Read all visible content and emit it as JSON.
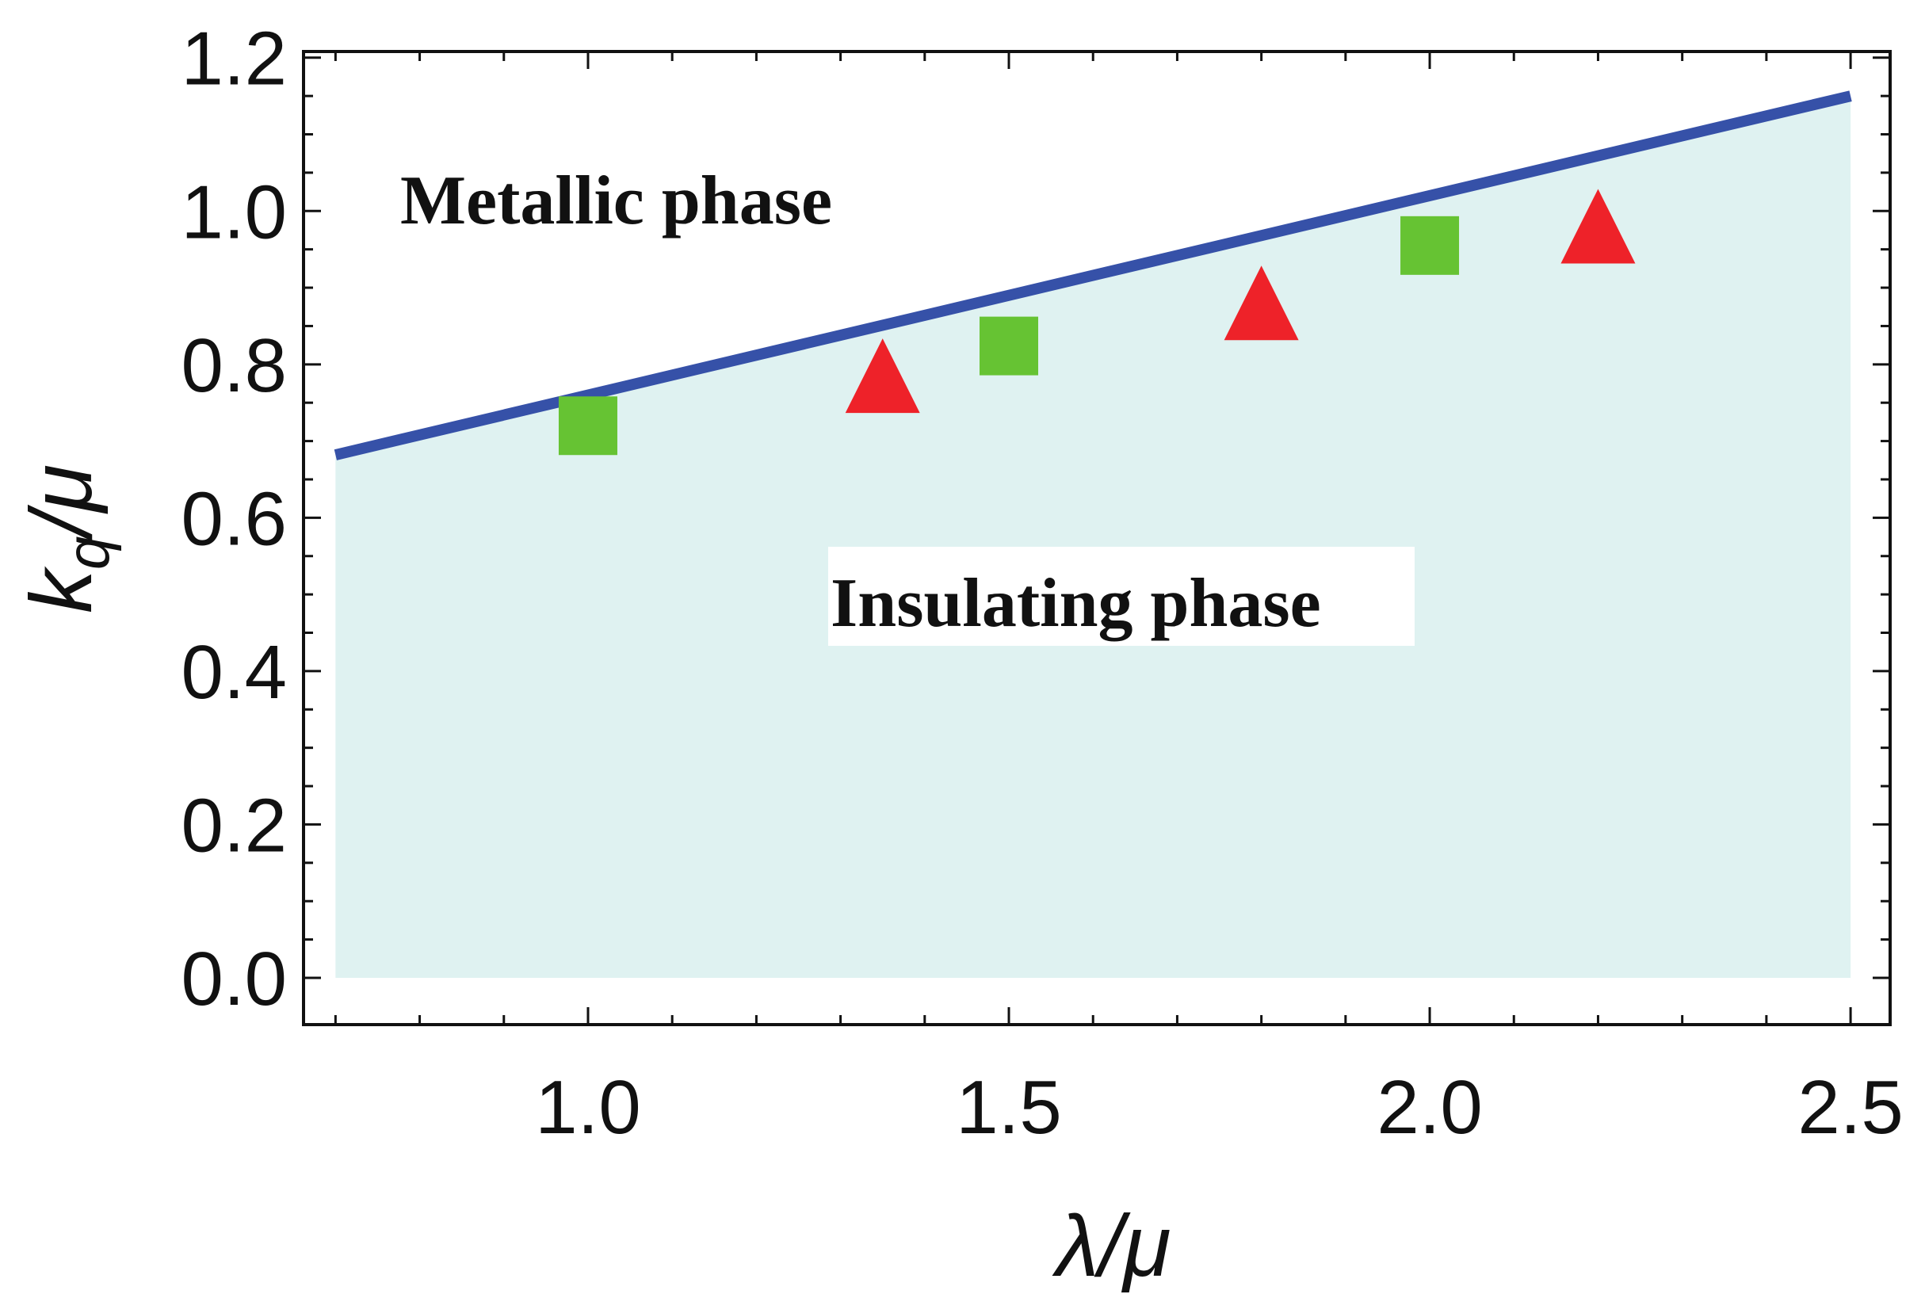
{
  "chart_data": {
    "type": "scatter",
    "title": "",
    "xlabel": "λ/μ",
    "ylabel_main": "k",
    "ylabel_sub": "q",
    "ylabel_tail": "/μ",
    "xlim": [
      0.662,
      2.547
    ],
    "ylim": [
      -0.061,
      1.208
    ],
    "xticks": [
      "1.0",
      "1.5",
      "2.0",
      "2.5"
    ],
    "xtick_values": [
      1.0,
      1.5,
      2.0,
      2.5
    ],
    "yticks": [
      "0.0",
      "0.2",
      "0.4",
      "0.6",
      "0.8",
      "1.0",
      "1.2"
    ],
    "ytick_values": [
      0,
      0.2,
      0.4,
      0.6,
      0.8,
      1.0,
      1.2
    ],
    "grid": false,
    "boundary_line": {
      "x": [
        0.7,
        2.5
      ],
      "y": [
        0.682,
        1.15
      ],
      "color": "#3651a8"
    },
    "insulating_region": {
      "x_range": [
        0.7,
        2.5
      ],
      "color": "#dff2f1"
    },
    "series": [
      {
        "name": "squares",
        "marker": "square",
        "color": "#66c333",
        "x": [
          1.0,
          1.5,
          2.0
        ],
        "y": [
          0.72,
          0.824,
          0.955
        ]
      },
      {
        "name": "triangles",
        "marker": "triangle",
        "color": "#ee2229",
        "x": [
          1.35,
          1.8,
          2.2
        ],
        "y": [
          0.78,
          0.875,
          0.975
        ]
      }
    ],
    "annotations": {
      "metallic": "Metallic phase",
      "insulating": "Insulating phase"
    }
  }
}
